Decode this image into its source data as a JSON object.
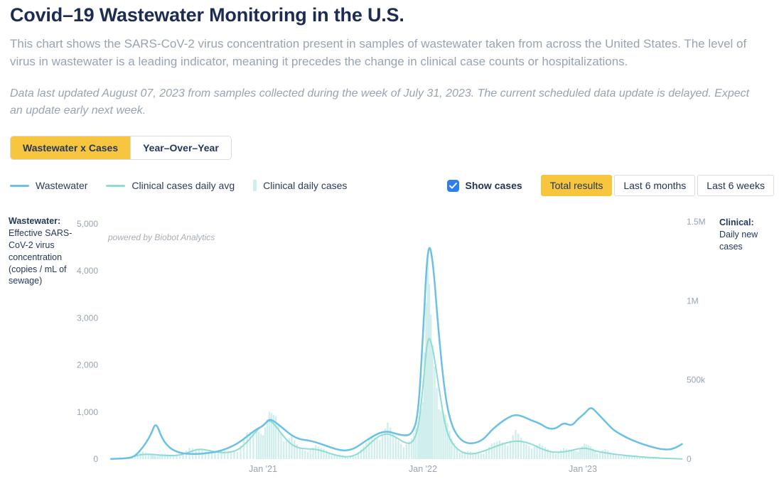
{
  "page": {
    "title": "Covid–19 Wastewater Monitoring in the U.S.",
    "description": "This chart shows the SARS-CoV-2 virus concentration present in samples of wastewater taken from across the United States. The level of virus in wastewater is a leading indicator, meaning it precedes the change in clinical case counts or hospitalizations.",
    "update_note": "Data last updated August 07, 2023 from samples collected during the week of July 31, 2023. The current scheduled data update is delayed. Expect an update early next week."
  },
  "tabs": [
    {
      "label": "Wastewater x Cases",
      "active": true
    },
    {
      "label": "Year–Over–Year",
      "active": false
    }
  ],
  "legend": [
    {
      "label": "Wastewater",
      "swatch": "line",
      "color": "#6ac1e5"
    },
    {
      "label": "Clinical cases daily avg",
      "swatch": "line",
      "color": "#8edcd4"
    },
    {
      "label": "Clinical daily cases",
      "swatch": "bar",
      "color": "#cfeeec"
    }
  ],
  "controls": {
    "show_cases_label": "Show cases",
    "show_cases_checked": true,
    "checkbox_color": "#2e7ef0",
    "range_buttons": [
      {
        "label": "Total results",
        "active": true
      },
      {
        "label": "Last 6 months",
        "active": false
      },
      {
        "label": "Last 6 weeks",
        "active": false
      }
    ]
  },
  "chart_data": {
    "type": "line",
    "subtype": "dual-axis time series with daily-case bars",
    "watermark": "powered by Biobot Analytics",
    "x_unit": "decimal_year",
    "x_domain": [
      2020.02,
      2023.66
    ],
    "x_ticks": [
      {
        "v": 2021,
        "label": "Jan '21"
      },
      {
        "v": 2022,
        "label": "Jan '22"
      },
      {
        "v": 2023,
        "label": "Jan '23"
      }
    ],
    "left_axis": {
      "title": "Wastewater:",
      "subtitle": "Effective SARS-CoV-2 virus concentration (copies / mL of sewage)",
      "range": [
        0,
        5000
      ],
      "ticks": [
        {
          "v": 5000,
          "label": "5,000"
        },
        {
          "v": 4000,
          "label": "4,000"
        },
        {
          "v": 3000,
          "label": "3,000"
        },
        {
          "v": 2000,
          "label": "2,000"
        },
        {
          "v": 1000,
          "label": "1,000"
        },
        {
          "v": 0,
          "label": "0"
        }
      ]
    },
    "right_axis": {
      "title": "Clinical:",
      "subtitle": "Daily new cases",
      "range": [
        0,
        1500000
      ],
      "ticks": [
        {
          "v": 1500000,
          "label": "1.5M"
        },
        {
          "v": 1000000,
          "label": "1M"
        },
        {
          "v": 500000,
          "label": "500k"
        },
        {
          "v": 0,
          "label": "0"
        }
      ]
    },
    "x": [
      2020.05,
      2020.15,
      2020.2,
      2020.25,
      2020.3,
      2020.33,
      2020.37,
      2020.42,
      2020.48,
      2020.54,
      2020.6,
      2020.66,
      2020.72,
      2020.78,
      2020.84,
      2020.9,
      2020.96,
      2021.0,
      2021.04,
      2021.08,
      2021.13,
      2021.18,
      2021.23,
      2021.28,
      2021.33,
      2021.38,
      2021.43,
      2021.48,
      2021.53,
      2021.58,
      2021.63,
      2021.68,
      2021.73,
      2021.78,
      2021.83,
      2021.88,
      2021.93,
      2021.97,
      2022.0,
      2022.03,
      2022.06,
      2022.1,
      2022.14,
      2022.18,
      2022.23,
      2022.28,
      2022.33,
      2022.38,
      2022.43,
      2022.48,
      2022.53,
      2022.58,
      2022.63,
      2022.68,
      2022.73,
      2022.78,
      2022.83,
      2022.88,
      2022.93,
      2022.97,
      2023.01,
      2023.05,
      2023.09,
      2023.14,
      2023.19,
      2023.24,
      2023.29,
      2023.34,
      2023.39,
      2023.44,
      2023.49,
      2023.54,
      2023.58,
      2023.62
    ],
    "series": [
      {
        "name": "Wastewater",
        "type": "line",
        "axis": "left",
        "color": "#6ac1e5",
        "values": [
          5,
          10,
          60,
          250,
          520,
          800,
          420,
          220,
          130,
          110,
          110,
          130,
          160,
          230,
          330,
          480,
          640,
          700,
          860,
          780,
          640,
          500,
          420,
          400,
          360,
          300,
          240,
          190,
          180,
          240,
          360,
          470,
          560,
          590,
          540,
          500,
          520,
          900,
          2600,
          4600,
          4350,
          2600,
          1300,
          700,
          420,
          330,
          340,
          420,
          620,
          760,
          880,
          950,
          900,
          820,
          760,
          650,
          640,
          780,
          700,
          860,
          960,
          1120,
          980,
          800,
          620,
          520,
          430,
          360,
          300,
          250,
          210,
          200,
          240,
          320
        ]
      },
      {
        "name": "Clinical cases daily avg",
        "type": "line",
        "axis": "right",
        "color": "#8edcd4",
        "values": [
          200,
          5000,
          20000,
          30000,
          30000,
          28000,
          24000,
          22000,
          24000,
          45000,
          65000,
          55000,
          42000,
          40000,
          55000,
          105000,
          180000,
          215000,
          250000,
          210000,
          140000,
          90000,
          68000,
          65000,
          62000,
          50000,
          32000,
          18000,
          13000,
          25000,
          60000,
          110000,
          150000,
          162000,
          140000,
          105000,
          95000,
          180000,
          450000,
          790000,
          720000,
          450000,
          200000,
          100000,
          50000,
          32000,
          35000,
          50000,
          70000,
          90000,
          105000,
          115000,
          110000,
          95000,
          70000,
          50000,
          42000,
          45000,
          55000,
          65000,
          70000,
          62000,
          48000,
          40000,
          32000,
          26000,
          20000,
          16000,
          12000,
          9000,
          6000,
          4000,
          2500,
          1500
        ]
      },
      {
        "name": "Clinical daily cases",
        "type": "bar",
        "axis": "right",
        "color": "#cfeeec",
        "values": [
          300,
          6500,
          16000,
          48000,
          30000,
          20000,
          34000,
          29000,
          19000,
          72000,
          65000,
          38000,
          59000,
          52000,
          44000,
          168000,
          180000,
          150000,
          300000,
          270000,
          112000,
          144000,
          68000,
          46000,
          87000,
          65000,
          26000,
          29000,
          13000,
          18000,
          84000,
          143000,
          120000,
          230000,
          140000,
          74000,
          133000,
          234000,
          360000,
          1300000,
          720000,
          315000,
          280000,
          130000,
          40000,
          51000,
          35000,
          35000,
          98000,
          117000,
          84000,
          184000,
          110000,
          67000,
          98000,
          65000,
          34000,
          72000,
          55000,
          46000,
          98000,
          81000,
          38000,
          64000,
          32000,
          18000,
          28000,
          21000,
          10000,
          14000,
          6000,
          3000,
          3500,
          2000
        ]
      }
    ]
  }
}
